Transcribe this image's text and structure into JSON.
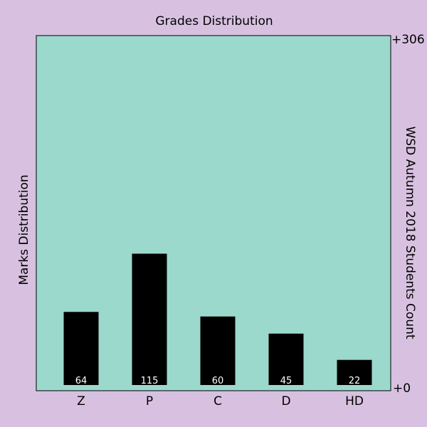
{
  "colors": {
    "background": "#d8c1e0",
    "plot_area": "#9bd9cc",
    "bar": "#000000",
    "bar_label": "#ffffff",
    "text": "#000000"
  },
  "chart_data": {
    "type": "bar",
    "title": "Grades Distribution",
    "xlabel": "",
    "ylabel_left": "Marks Distribution",
    "ylabel_right": "WSD Autumn 2018 Students Count",
    "categories": [
      "Z",
      "P",
      "C",
      "D",
      "HD"
    ],
    "values": [
      64,
      115,
      60,
      45,
      22
    ],
    "bar_labels": [
      "64",
      "115",
      "60",
      "45",
      "22"
    ],
    "ylim": [
      0,
      306
    ],
    "yticks_right": [
      "+0",
      "+306"
    ],
    "grid": false,
    "legend": "none"
  }
}
